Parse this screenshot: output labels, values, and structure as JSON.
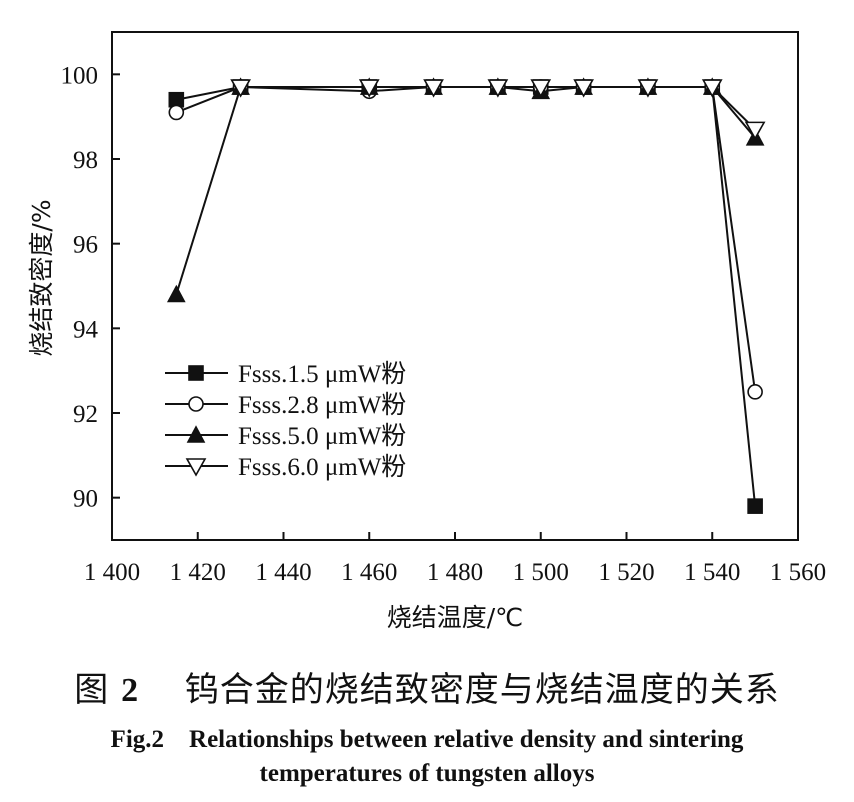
{
  "chart_data": {
    "type": "line",
    "xlabel": "烧结温度/℃",
    "ylabel": "烧结致密度/%",
    "xlim": [
      1400,
      1560
    ],
    "ylim": [
      89,
      101
    ],
    "x_ticks": [
      1400,
      1420,
      1440,
      1460,
      1480,
      1500,
      1520,
      1540,
      1560
    ],
    "x_tick_labels": [
      "1 400",
      "1 420",
      "1 440",
      "1 460",
      "1 480",
      "1 500",
      "1 520",
      "1 540",
      "1 560"
    ],
    "y_ticks": [
      90,
      92,
      94,
      96,
      98,
      100
    ],
    "y_tick_labels": [
      "90",
      "92",
      "94",
      "96",
      "98",
      "100"
    ],
    "grid": false,
    "legend_position": "lower-left",
    "x": [
      1415,
      1430,
      1460,
      1475,
      1490,
      1500,
      1510,
      1525,
      1540,
      1550
    ],
    "series": [
      {
        "name": "Fsss.1.5 μmW粉",
        "marker": "square-filled",
        "values": [
          99.4,
          99.7,
          99.7,
          99.7,
          99.7,
          99.7,
          99.7,
          99.7,
          99.7,
          89.8
        ]
      },
      {
        "name": "Fsss.2.8 μmW粉",
        "marker": "circle-open",
        "values": [
          99.1,
          99.7,
          99.6,
          99.7,
          99.7,
          99.7,
          99.7,
          99.7,
          99.7,
          92.5
        ]
      },
      {
        "name": "Fsss.5.0 μmW粉",
        "marker": "triangle-up-filled",
        "values": [
          94.8,
          99.7,
          99.7,
          99.7,
          99.7,
          99.6,
          99.7,
          99.7,
          99.7,
          98.5
        ]
      },
      {
        "name": "Fsss.6.0 μmW粉",
        "marker": "triangle-down-open",
        "values": [
          null,
          99.7,
          99.7,
          99.7,
          99.7,
          99.7,
          99.7,
          99.7,
          99.7,
          98.7
        ]
      }
    ]
  },
  "caption": {
    "cn_prefix": "图",
    "cn_number": "2",
    "cn_title": "钨合金的烧结致密度与烧结温度的关系",
    "en_line1": "Fig.2    Relationships between relative density and sintering",
    "en_line2": "temperatures of tungsten alloys"
  }
}
